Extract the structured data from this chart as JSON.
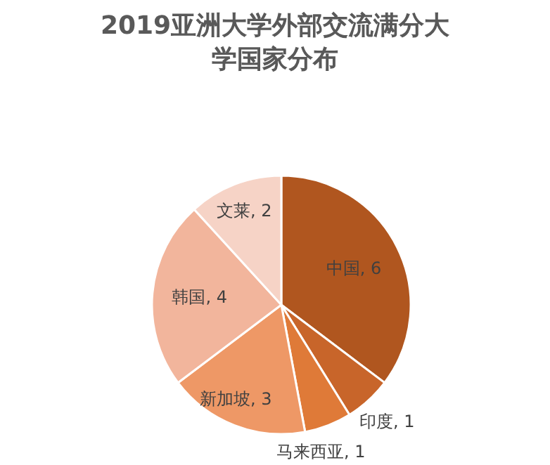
{
  "chart_data": {
    "type": "pie",
    "title": "2019亚洲大学外部交流满分大学国家分布",
    "categories": [
      "中国",
      "印度",
      "马来西亚",
      "新加坡",
      "韩国",
      "文莱"
    ],
    "values": [
      6,
      1,
      1,
      3,
      4,
      2
    ],
    "colors": [
      "#b0561f",
      "#c8652a",
      "#df7a38",
      "#ee9866",
      "#f2b59c",
      "#f6d3c6"
    ],
    "value_labels": [
      ", 6",
      ", 1",
      ", 1",
      ", 3",
      ", 4",
      ", 2"
    ]
  }
}
